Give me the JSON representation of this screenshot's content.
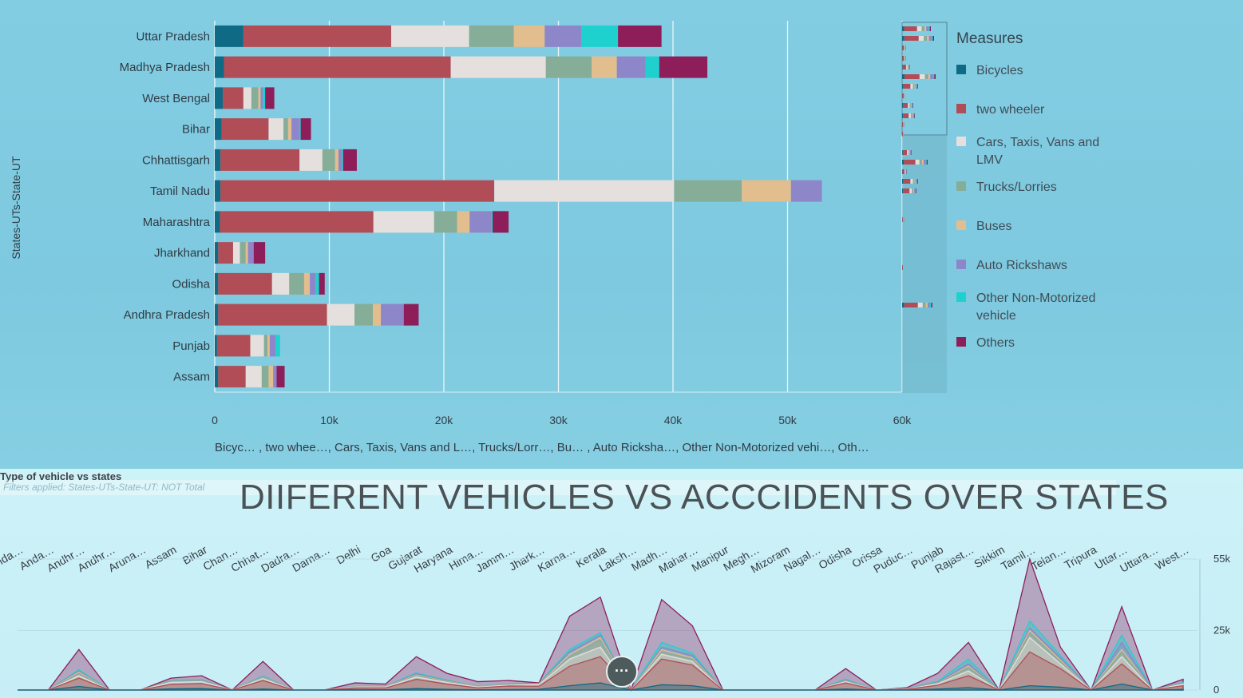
{
  "bar_chart": {
    "yaxis_title": "States-UTs-State-UT",
    "x_caption": "Bicyc… , two whee…, Cars, Taxis, Vans and L…, Trucks/Lorr…, Bu… , Auto Ricksha…, Other Non-Motorized vehi…, Oth…",
    "legend_title": "Measures"
  },
  "area_chart": {
    "panel_title": "Type of vehicle vs states",
    "filter_note": "Filters applied:  States-UTs-State-UT: NOT Total",
    "big_title": "DIIFERENT VEHICLES VS ACCCIDENTS OVER STATES",
    "more_label": "···"
  },
  "colors": {
    "Bicycles": "#0f6a85",
    "two wheeler": "#b14d56",
    "Cars, Taxis, Vans and LMV": "#e5e0dd",
    "Trucks/Lorries": "#86ad98",
    "Buses": "#e2bd8d",
    "Auto Rickshaws": "#8d87c9",
    "Other Non-Motorized vehicle": "#1ed1cf",
    "Others": "#8d1e5a"
  },
  "chart_data": [
    {
      "type": "bar",
      "orientation": "horizontal",
      "stacked": true,
      "title": "",
      "ylabel": "States-UTs-State-UT",
      "xlabel": "",
      "xlim": [
        0,
        60000
      ],
      "xticks": [
        "0",
        "10k",
        "20k",
        "30k",
        "40k",
        "50k",
        "60k"
      ],
      "grid": true,
      "legend": "right",
      "categories": [
        "Uttar Pradesh",
        "Madhya Pradesh",
        "West Bengal",
        "Bihar",
        "Chhattisgarh",
        "Tamil Nadu",
        "Maharashtra",
        "Jharkhand",
        "Odisha",
        "Andhra Pradesh",
        "Punjab",
        "Assam"
      ],
      "series": [
        {
          "name": "Bicycles",
          "values": [
            2500,
            800,
            700,
            600,
            500,
            500,
            450,
            300,
            300,
            300,
            200,
            300
          ]
        },
        {
          "name": "two wheeler",
          "values": [
            12900,
            19800,
            1800,
            4100,
            6900,
            23900,
            13400,
            1300,
            4700,
            9500,
            2900,
            2400
          ]
        },
        {
          "name": "Cars, Taxis, Vans and LMV",
          "values": [
            6800,
            8300,
            700,
            1300,
            2000,
            15700,
            5300,
            600,
            1500,
            2400,
            1200,
            1400
          ]
        },
        {
          "name": "Trucks/Lorries",
          "values": [
            3900,
            4000,
            600,
            400,
            1100,
            5900,
            2000,
            500,
            1300,
            1600,
            300,
            600
          ]
        },
        {
          "name": "Buses",
          "values": [
            2700,
            2200,
            200,
            300,
            300,
            4300,
            1100,
            200,
            500,
            700,
            200,
            400
          ]
        },
        {
          "name": "Auto Rickshaws",
          "values": [
            3200,
            2500,
            200,
            700,
            300,
            2700,
            1900,
            500,
            500,
            2000,
            500,
            300
          ]
        },
        {
          "name": "Other Non-Motorized vehicle",
          "values": [
            3200,
            1200,
            200,
            100,
            100,
            0,
            100,
            0,
            300,
            0,
            400,
            0
          ]
        },
        {
          "name": "Others",
          "values": [
            3800,
            4200,
            800,
            900,
            1200,
            0,
            1400,
            1000,
            500,
            1300,
            0,
            700
          ]
        }
      ]
    },
    {
      "type": "area",
      "stacked": false,
      "title": "DIIFERENT VEHICLES VS ACCCIDENTS OVER STATES",
      "ylim": [
        0,
        55000
      ],
      "yticks": [
        "0",
        "25k",
        "55k"
      ],
      "x": [
        "Anda…",
        "Anda…",
        "Andhr…",
        "Andhr…",
        "Aruna…",
        "Assam",
        "Bihar",
        "Chan…",
        "Chhat…",
        "Dadra…",
        "Dama…",
        "Delhi",
        "Goa",
        "Gujarat",
        "Haryana",
        "Hima…",
        "Jamm…",
        "Jhark…",
        "Karna…",
        "Kerala",
        "Laksh…",
        "Madh…",
        "Mahar…",
        "Manipur",
        "Megh…",
        "Mizoram",
        "Nagal…",
        "Odisha",
        "Orissa",
        "Puduc…",
        "Punjab",
        "Rajast…",
        "Sikkim",
        "Tamil…",
        "Telan…",
        "Tripura",
        "Uttar…",
        "Uttara…",
        "West…"
      ],
      "series": [
        {
          "name": "Bicycles",
          "values": [
            0,
            0,
            1500,
            0,
            0,
            500,
            600,
            0,
            400,
            0,
            0,
            200,
            100,
            600,
            300,
            100,
            200,
            300,
            1800,
            3000,
            0,
            2200,
            1800,
            0,
            0,
            0,
            0,
            400,
            0,
            0,
            400,
            1000,
            0,
            1800,
            1200,
            0,
            2500,
            0,
            300
          ]
        },
        {
          "name": "two wheeler",
          "values": [
            0,
            0,
            5000,
            0,
            0,
            2400,
            2700,
            0,
            4000,
            0,
            0,
            900,
            900,
            4500,
            2500,
            900,
            1700,
            1600,
            10000,
            14000,
            0,
            13000,
            10500,
            0,
            0,
            0,
            0,
            3000,
            0,
            300,
            2000,
            6000,
            0,
            16000,
            9000,
            0,
            11000,
            0,
            1800
          ]
        },
        {
          "name": "Cars, Taxis, Vans and LMV",
          "values": [
            0,
            0,
            6000,
            0,
            0,
            3200,
            3500,
            0,
            4800,
            0,
            0,
            1200,
            1200,
            5500,
            3200,
            1200,
            2000,
            2200,
            13000,
            18000,
            0,
            15000,
            12000,
            0,
            0,
            0,
            0,
            3500,
            0,
            400,
            2600,
            8000,
            0,
            22000,
            11000,
            0,
            14000,
            0,
            2400
          ]
        },
        {
          "name": "Trucks/Lorries",
          "values": [
            0,
            0,
            7000,
            0,
            0,
            3500,
            3800,
            0,
            5200,
            0,
            0,
            1300,
            1300,
            6000,
            3500,
            1300,
            2200,
            2400,
            14000,
            21000,
            0,
            16000,
            13000,
            0,
            0,
            0,
            0,
            3800,
            0,
            500,
            2900,
            9500,
            0,
            24000,
            12000,
            0,
            16000,
            0,
            2700
          ]
        },
        {
          "name": "Buses",
          "values": [
            0,
            0,
            7500,
            0,
            0,
            3600,
            3900,
            0,
            5400,
            0,
            0,
            1400,
            1400,
            6300,
            3700,
            1400,
            2300,
            2500,
            15000,
            22000,
            0,
            17000,
            13500,
            0,
            0,
            0,
            0,
            3900,
            0,
            500,
            3000,
            10000,
            0,
            25000,
            12500,
            0,
            17000,
            0,
            2800
          ]
        },
        {
          "name": "Auto Rickshaws",
          "values": [
            0,
            0,
            8000,
            0,
            0,
            3700,
            4100,
            0,
            5600,
            0,
            0,
            1500,
            1500,
            6800,
            3900,
            1500,
            2500,
            2700,
            16000,
            23000,
            0,
            18000,
            14500,
            0,
            0,
            0,
            0,
            4200,
            0,
            600,
            3300,
            11000,
            0,
            26000,
            13500,
            0,
            20000,
            0,
            3000
          ]
        },
        {
          "name": "Other Non-Motorized vehicle",
          "values": [
            0,
            0,
            8500,
            0,
            0,
            3900,
            4300,
            0,
            5900,
            0,
            0,
            1600,
            1600,
            7200,
            4100,
            1600,
            2600,
            2800,
            17000,
            24000,
            0,
            20000,
            15500,
            0,
            0,
            0,
            0,
            4500,
            0,
            650,
            3600,
            13000,
            0,
            29000,
            14500,
            0,
            23000,
            0,
            3200
          ]
        },
        {
          "name": "Others",
          "values": [
            0,
            0,
            17000,
            0,
            0,
            5000,
            6000,
            0,
            12000,
            0,
            0,
            3000,
            2500,
            14000,
            7000,
            3500,
            4000,
            3000,
            31000,
            39000,
            0,
            38000,
            27000,
            0,
            0,
            0,
            0,
            9000,
            0,
            1000,
            7000,
            20000,
            0,
            55000,
            18000,
            0,
            35000,
            0,
            4500
          ]
        }
      ]
    }
  ]
}
